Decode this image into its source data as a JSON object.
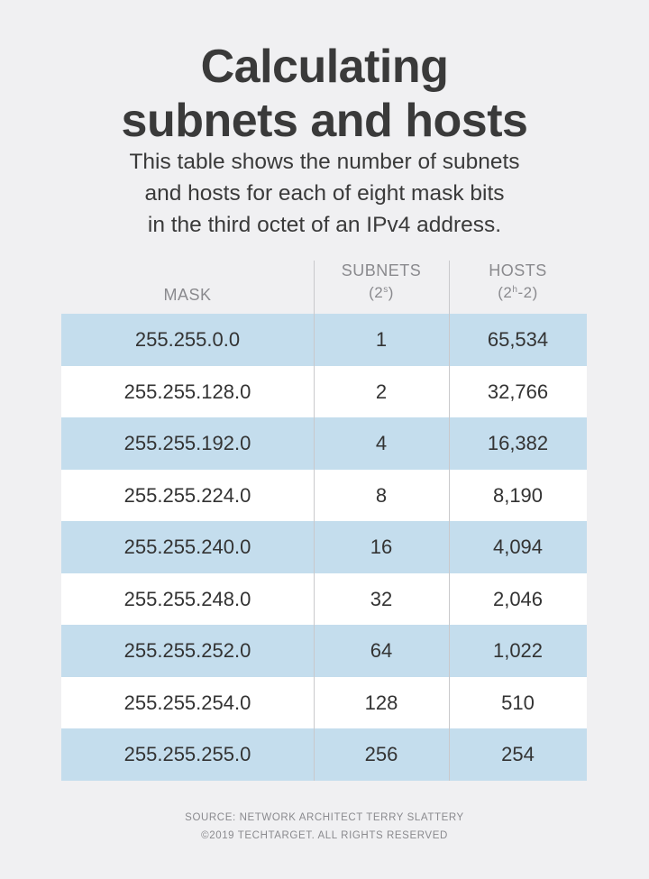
{
  "title": {
    "line1": "Calculating",
    "line2": "subnets and hosts"
  },
  "subtitle": {
    "line1": "This table shows the number of subnets",
    "line2": "and hosts for each of eight mask bits",
    "line3": "in the third octet of an IPv4 address."
  },
  "table": {
    "headers": {
      "mask": "MASK",
      "subnets": "SUBNETS",
      "subnets_formula_base": "(2",
      "subnets_formula_exp": "s",
      "subnets_formula_end": ")",
      "hosts": "HOSTS",
      "hosts_formula_base": "(2",
      "hosts_formula_exp": "h",
      "hosts_formula_end": "-2)"
    },
    "rows": [
      {
        "mask": "255.255.0.0",
        "subnets": "1",
        "hosts": "65,534"
      },
      {
        "mask": "255.255.128.0",
        "subnets": "2",
        "hosts": "32,766"
      },
      {
        "mask": "255.255.192.0",
        "subnets": "4",
        "hosts": "16,382"
      },
      {
        "mask": "255.255.224.0",
        "subnets": "8",
        "hosts": "8,190"
      },
      {
        "mask": "255.255.240.0",
        "subnets": "16",
        "hosts": "4,094"
      },
      {
        "mask": "255.255.248.0",
        "subnets": "32",
        "hosts": "2,046"
      },
      {
        "mask": "255.255.252.0",
        "subnets": "64",
        "hosts": "1,022"
      },
      {
        "mask": "255.255.254.0",
        "subnets": "128",
        "hosts": "510"
      },
      {
        "mask": "255.255.255.0",
        "subnets": "256",
        "hosts": "254"
      }
    ]
  },
  "source": {
    "line1": "SOURCE: NETWORK ARCHITECT TERRY SLATTERY",
    "line2": "©2019 TECHTARGET. ALL RIGHTS RESERVED"
  },
  "colors": {
    "background": "#f0f0f2",
    "row_shade": "#c4dded",
    "row_plain": "#ffffff",
    "text_dark": "#333333",
    "text_muted": "#8a8a8e"
  }
}
